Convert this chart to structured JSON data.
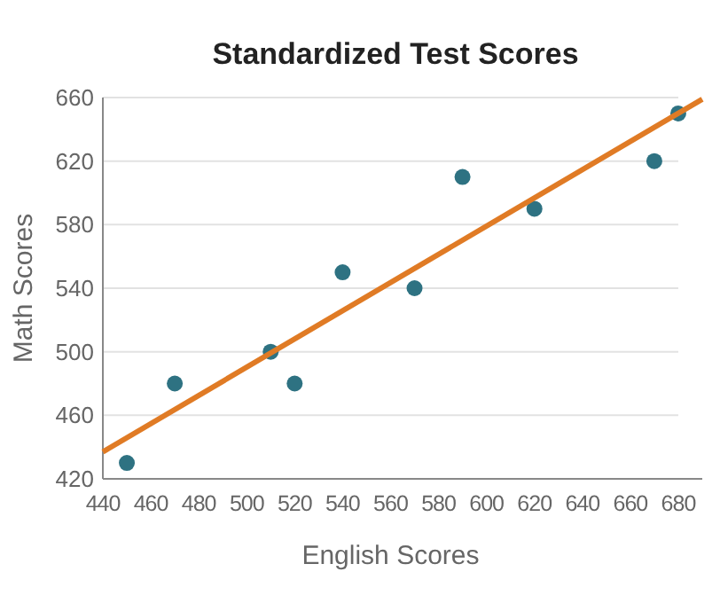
{
  "chart_data": {
    "type": "scatter",
    "title": "Standardized Test Scores",
    "xlabel": "English Scores",
    "ylabel": "Math Scores",
    "xlim": [
      440,
      690
    ],
    "xticks": [
      440,
      460,
      480,
      500,
      520,
      540,
      560,
      580,
      600,
      620,
      640,
      660,
      680
    ],
    "ylim": [
      420,
      660
    ],
    "yticks": [
      420,
      460,
      500,
      540,
      580,
      620,
      660
    ],
    "grid": "y",
    "series": [
      {
        "marker": "circle",
        "color": "#2e7282",
        "x": [
          450,
          470,
          510,
          520,
          540,
          570,
          590,
          620,
          670,
          680
        ],
        "values": [
          430,
          480,
          500,
          480,
          550,
          540,
          610,
          590,
          620,
          650
        ]
      },
      {
        "type": "line",
        "color": "#e07b25",
        "x": [
          440,
          690
        ],
        "values": [
          437,
          659
        ],
        "line_style": "solid"
      }
    ]
  }
}
